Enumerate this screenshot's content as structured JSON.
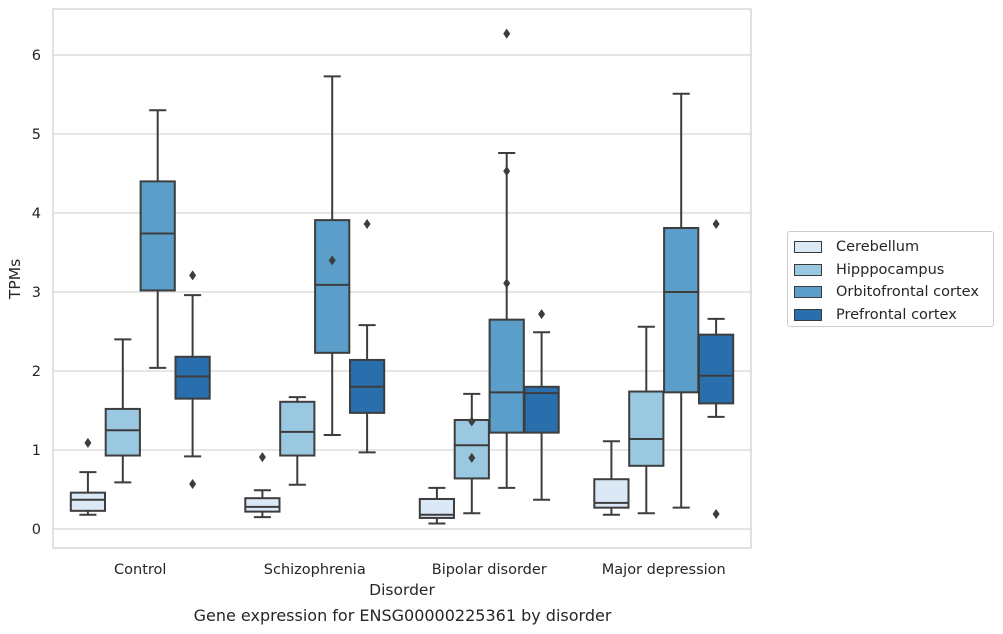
{
  "chart_data": {
    "type": "box",
    "caption": "Gene expression for ENSG00000225361 by disorder",
    "xlabel": "Disorder",
    "ylabel": "TPMs",
    "ylim": [
      -0.25,
      6.6
    ],
    "yticks": [
      0,
      1,
      2,
      3,
      4,
      5,
      6
    ],
    "grid": true,
    "legend_position": "right",
    "categories": [
      "Control",
      "Schizophrenia",
      "Bipolar disorder",
      "Major depression"
    ],
    "series": [
      {
        "name": "Cerebellum",
        "color": "#dbe9f6",
        "boxes": [
          {
            "whislo": 0.18,
            "q1": 0.23,
            "med": 0.37,
            "q3": 0.46,
            "whishi": 0.72,
            "fliers": [
              1.09
            ]
          },
          {
            "whislo": 0.15,
            "q1": 0.22,
            "med": 0.28,
            "q3": 0.39,
            "whishi": 0.49,
            "fliers": [
              0.91
            ]
          },
          {
            "whislo": 0.07,
            "q1": 0.14,
            "med": 0.18,
            "q3": 0.38,
            "whishi": 0.52,
            "fliers": []
          },
          {
            "whislo": 0.18,
            "q1": 0.27,
            "med": 0.33,
            "q3": 0.63,
            "whishi": 1.11,
            "fliers": []
          }
        ]
      },
      {
        "name": "Hipppocampus",
        "color": "#9ac8e0",
        "boxes": [
          {
            "whislo": 0.59,
            "q1": 0.93,
            "med": 1.25,
            "q3": 1.52,
            "whishi": 2.4,
            "fliers": []
          },
          {
            "whislo": 0.56,
            "q1": 0.93,
            "med": 1.23,
            "q3": 1.61,
            "whishi": 1.67,
            "fliers": []
          },
          {
            "whislo": 0.2,
            "q1": 0.64,
            "med": 1.06,
            "q3": 1.38,
            "whishi": 1.71,
            "fliers": [
              1.36,
              0.9
            ]
          },
          {
            "whislo": 0.2,
            "q1": 0.8,
            "med": 1.14,
            "q3": 1.74,
            "whishi": 2.56,
            "fliers": []
          }
        ]
      },
      {
        "name": "Orbitofrontal cortex",
        "color": "#5a9ec9",
        "boxes": [
          {
            "whislo": 2.04,
            "q1": 3.02,
            "med": 3.74,
            "q3": 4.4,
            "whishi": 5.3,
            "fliers": []
          },
          {
            "whislo": 1.19,
            "q1": 2.23,
            "med": 3.09,
            "q3": 3.91,
            "whishi": 5.73,
            "fliers": [
              3.4
            ]
          },
          {
            "whislo": 0.52,
            "q1": 1.22,
            "med": 1.73,
            "q3": 2.65,
            "whishi": 4.76,
            "fliers": [
              4.53,
              3.11,
              6.27
            ]
          },
          {
            "whislo": 0.27,
            "q1": 1.73,
            "med": 3.0,
            "q3": 3.81,
            "whishi": 5.51,
            "fliers": []
          }
        ]
      },
      {
        "name": "Prefrontal cortex",
        "color": "#2a6fad",
        "boxes": [
          {
            "whislo": 0.92,
            "q1": 1.65,
            "med": 1.93,
            "q3": 2.18,
            "whishi": 2.96,
            "fliers": [
              3.21,
              0.57
            ]
          },
          {
            "whislo": 0.97,
            "q1": 1.47,
            "med": 1.8,
            "q3": 2.14,
            "whishi": 2.58,
            "fliers": [
              3.86
            ]
          },
          {
            "whislo": 0.37,
            "q1": 1.22,
            "med": 1.72,
            "q3": 1.8,
            "whishi": 2.49,
            "fliers": [
              2.72
            ]
          },
          {
            "whislo": 1.42,
            "q1": 1.59,
            "med": 1.94,
            "q3": 2.46,
            "whishi": 2.66,
            "fliers": [
              3.86,
              0.19
            ]
          }
        ]
      }
    ]
  }
}
